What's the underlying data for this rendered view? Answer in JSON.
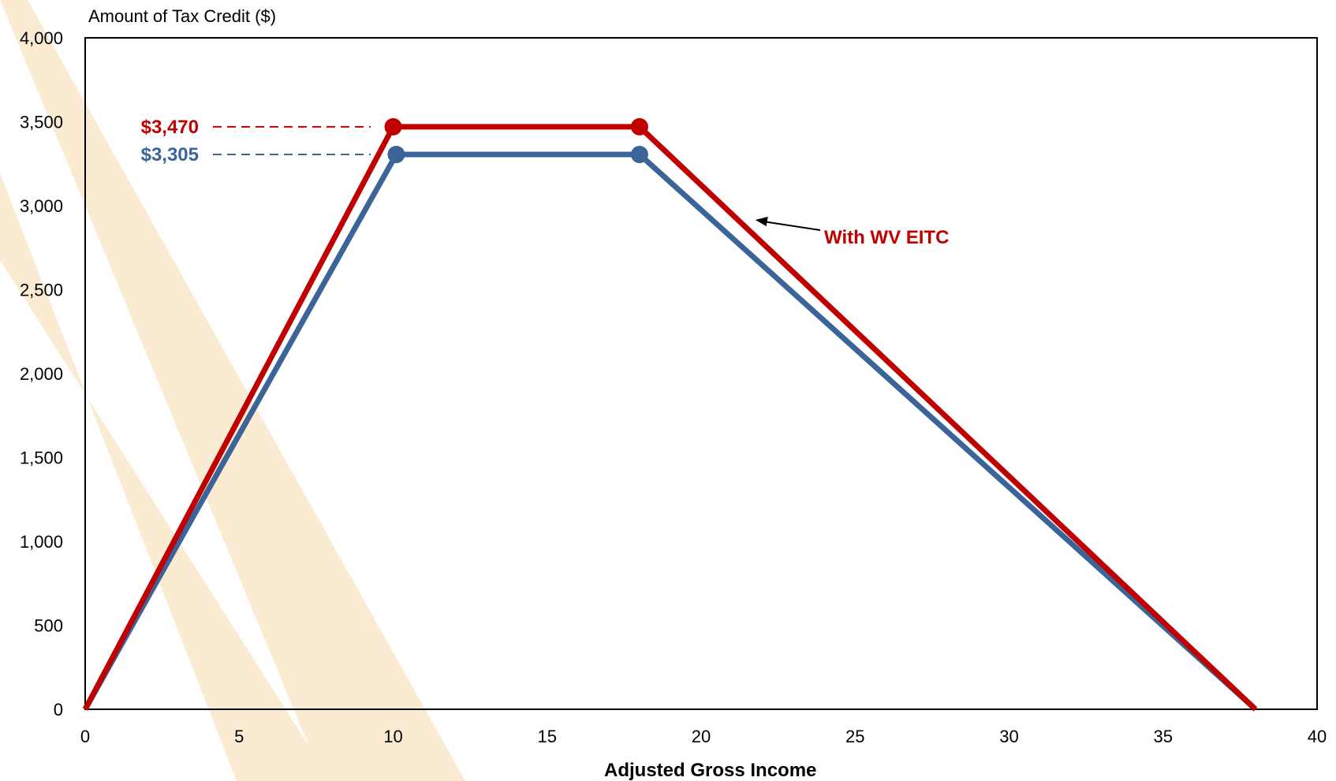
{
  "chart_data": {
    "type": "line",
    "title": "",
    "ylabel": "Amount of Tax Credit ($)",
    "xlabel": "Adjusted Gross Income",
    "xlim": [
      0,
      40
    ],
    "ylim": [
      0,
      4000
    ],
    "x_ticks": [
      "0",
      "5",
      "10",
      "15",
      "20",
      "25",
      "30",
      "35",
      "40"
    ],
    "y_ticks": [
      "0",
      "500",
      "1,000",
      "1,500",
      "2,000",
      "2,500",
      "3,000",
      "3,500",
      "4,000"
    ],
    "grid": false,
    "series": [
      {
        "name": "With WV EITC",
        "color": "#C00000",
        "points": [
          [
            0,
            0
          ],
          [
            10,
            3470
          ],
          [
            18,
            3470
          ],
          [
            38,
            0
          ]
        ],
        "marked_points": [
          [
            10,
            3470
          ],
          [
            18,
            3470
          ]
        ]
      },
      {
        "name": "",
        "color": "#3B6499",
        "points": [
          [
            0,
            0
          ],
          [
            10.1,
            3305
          ],
          [
            18,
            3305
          ],
          [
            38,
            0
          ]
        ],
        "marked_points": [
          [
            10.1,
            3305
          ],
          [
            18,
            3305
          ]
        ]
      }
    ],
    "annotations": [
      {
        "text": "$3,470",
        "color": "#C00000",
        "y": 3470
      },
      {
        "text": "$3,305",
        "color": "#3B6499",
        "y": 3305
      },
      {
        "text": "With WV EITC",
        "color": "#C00000",
        "arrow_to": [
          21.4,
          3000
        ]
      }
    ],
    "background_stripe_color": "#FBEBD3"
  }
}
